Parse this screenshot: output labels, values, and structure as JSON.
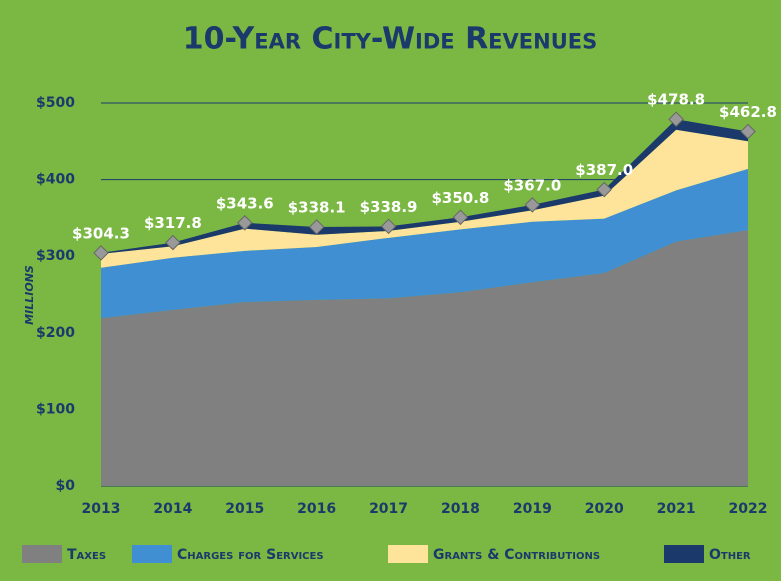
{
  "chart_data": {
    "type": "stacked_area",
    "title": "10-Year City-Wide Revenues",
    "y_axis_label": "Millions",
    "categories": [
      "2013",
      "2014",
      "2015",
      "2016",
      "2017",
      "2018",
      "2019",
      "2020",
      "2021",
      "2022"
    ],
    "series": [
      {
        "name": "Taxes",
        "color": "#808080",
        "values": [
          219,
          230,
          240,
          243,
          245,
          253,
          266,
          278,
          319,
          334
        ]
      },
      {
        "name": "Charges for Services",
        "color": "#3f8fd2",
        "values": [
          66,
          68,
          67,
          69,
          79,
          82,
          79,
          71,
          67,
          80
        ]
      },
      {
        "name": "Grants & Contributions",
        "color": "#fde49a",
        "values": [
          18,
          15,
          29,
          16,
          9,
          10,
          15,
          30,
          79,
          36
        ]
      },
      {
        "name": "Other",
        "color": "#1b3a6b",
        "values": [
          1.3,
          4.8,
          7.6,
          10.1,
          5.9,
          5.8,
          7,
          8,
          13.8,
          12.8
        ]
      }
    ],
    "totals": [
      304.3,
      317.8,
      343.6,
      338.1,
      338.9,
      350.8,
      367.0,
      387.0,
      478.8,
      462.8
    ],
    "total_labels": [
      "$304.3",
      "$317.8",
      "$343.6",
      "$338.1",
      "$338.9",
      "$350.8",
      "$367.0",
      "$387.0",
      "$478.8",
      "$462.8"
    ],
    "ylim": [
      0,
      500
    ],
    "yticks": [
      {
        "value": 0,
        "label": "$0"
      },
      {
        "value": 100,
        "label": "$100"
      },
      {
        "value": 200,
        "label": "$200"
      },
      {
        "value": 300,
        "label": "$300"
      },
      {
        "value": 400,
        "label": "$400"
      },
      {
        "value": 500,
        "label": "$500"
      }
    ],
    "grid": true,
    "legend": "bottom"
  }
}
